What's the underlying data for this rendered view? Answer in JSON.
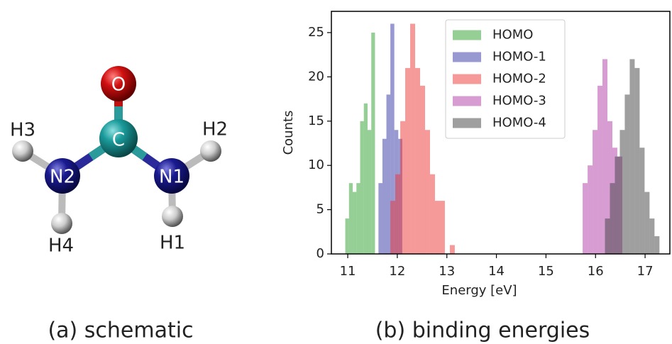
{
  "schematic": {
    "caption": "(a) schematic",
    "atoms": [
      "O",
      "C",
      "N1",
      "N2",
      "H1",
      "H2",
      "H3",
      "H4"
    ]
  },
  "chart_data": {
    "type": "histogram",
    "caption": "(b) binding energies",
    "xlabel": "Energy [eV]",
    "ylabel": "Counts",
    "xlim": [
      10.67,
      17.5
    ],
    "ylim": [
      0,
      27.4
    ],
    "xticks": [
      11,
      12,
      13,
      14,
      15,
      16,
      17
    ],
    "yticks": [
      0,
      5,
      10,
      15,
      20,
      25
    ],
    "alpha": 0.5,
    "legend": "upper center",
    "series": [
      {
        "name": "HOMO",
        "color": "#2ca02c",
        "bins": [
          10.95,
          11.025,
          11.1,
          11.175,
          11.25,
          11.325,
          11.4,
          11.475,
          11.55
        ],
        "counts": [
          4,
          8,
          7,
          8,
          15,
          17,
          14,
          25
        ]
      },
      {
        "name": "HOMO-1",
        "color": "#3333a6",
        "bins": [
          11.62,
          11.7,
          11.78,
          11.86,
          11.94,
          12.02,
          12.1
        ],
        "counts": [
          8,
          13,
          18,
          26,
          14,
          13
        ]
      },
      {
        "name": "HOMO-2",
        "color": "#ee3333",
        "bins": [
          11.86,
          11.96,
          12.06,
          12.16,
          12.26,
          12.36,
          12.46,
          12.56,
          12.66,
          12.76,
          12.86,
          12.96,
          13.06,
          13.16
        ],
        "counts": [
          6,
          9,
          15,
          21,
          26,
          21,
          19,
          14,
          9,
          6,
          6,
          0,
          1
        ]
      },
      {
        "name": "HOMO-3",
        "color": "#b03ca6",
        "bins": [
          15.74,
          15.84,
          15.94,
          16.04,
          16.14,
          16.24,
          16.34,
          16.44,
          16.54
        ],
        "counts": [
          8,
          10,
          14,
          19,
          22,
          15,
          12,
          11
        ]
      },
      {
        "name": "HOMO-4",
        "color": "#404040",
        "bins": [
          16.19,
          16.29,
          16.39,
          16.49,
          16.59,
          16.69,
          16.79,
          16.89,
          16.99,
          17.09,
          17.19,
          17.29
        ],
        "counts": [
          4,
          8,
          11,
          14,
          18,
          22,
          21,
          12,
          7,
          4,
          2
        ]
      }
    ]
  }
}
